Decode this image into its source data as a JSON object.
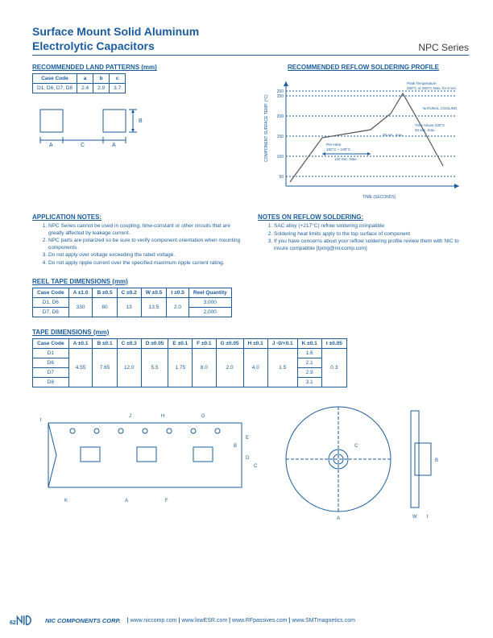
{
  "header": {
    "title_line1": "Surface Mount Solid Aluminum",
    "title_line2": "Electrolytic Capacitors",
    "series": "NPC Series"
  },
  "land_patterns": {
    "heading": "RECOMMENDED LAND PATTERNS (mm)",
    "columns": [
      "Case Code",
      "a",
      "b",
      "c"
    ],
    "rows": [
      [
        "D1, D6, D7, D8",
        "2.4",
        "2.9",
        "3.7"
      ]
    ]
  },
  "reflow_profile": {
    "heading": "RECOMMENDED REFLOW SOLDERING PROFILE",
    "ylabel": "COMPONENT SURFACE TEMP. (°C)",
    "xlabel": "TIME (SECONDS)",
    "yticks": [
      "50",
      "100",
      "150",
      "200",
      "250",
      "260"
    ],
    "annotations": {
      "peak": "Peak Temperature\n250°C or 260°C Max. for 5 sec.",
      "natural": "NATURAL COOLING",
      "above230": "Time Above 230°C\n40 sec. max.",
      "preheat": "Pre-Heat\n150°C ~ 180°C",
      "preheat_time": "120 Sec. Max.",
      "slope": "30 sec. max."
    },
    "line_color": "#555555",
    "axis_color": "#1a5c9e"
  },
  "app_notes": {
    "heading": "APPLICATION NOTES:",
    "items": [
      "NPC Series cannot be used in coupling, time-constant or other circuits that are greatly affected by leakage current.",
      "NPC parts are polarized so be sure to verify component orientation when mounting components.",
      "Do not apply over voltage exceeding the rated voltage.",
      "Do not apply ripple current over the specified maximum ripple current rating."
    ]
  },
  "reflow_notes": {
    "heading": "NOTES ON REFLOW SOLDERING:",
    "items": [
      "SAC alloy (+217°C) reflow soldering compatible",
      "Soldering heat limits apply to the top surface of component",
      "If you have concerns about your reflow soldering profile review them with NIC to insure compatible [tpmg@niccomp.com]"
    ]
  },
  "reel_tape": {
    "heading": "REEL TAPE DIMENSIONS (mm)",
    "columns": [
      "Case Code",
      "A ±1.0",
      "B ±0.5",
      "C ±0.2",
      "W ±0.5",
      "t ±0.5",
      "Reel Quantity"
    ],
    "rows": [
      [
        "D1, D6",
        "330",
        "80",
        "13",
        "13.5",
        "2.0",
        "3,000"
      ],
      [
        "D7, D8",
        "330",
        "80",
        "13",
        "13.5",
        "2.0",
        "2,000"
      ]
    ]
  },
  "tape_dims": {
    "heading": "TAPE DIMENSIONS (mm)",
    "columns": [
      "Case Code",
      "A ±0.1",
      "B ±0.1",
      "C ±0.3",
      "D ±0.05",
      "E ±0.1",
      "F ±0.1",
      "G ±0.05",
      "H ±0.1",
      "J -0/+0.1",
      "K ±0.1",
      "t ±0.05"
    ],
    "case_codes": [
      "D1",
      "D6",
      "D7",
      "D8"
    ],
    "shared": [
      "4.55",
      "7.65",
      "12.0",
      "5.5",
      "1.75",
      "8.0",
      "2.0",
      "4.0",
      "1.5"
    ],
    "k_values": [
      "1.6",
      "2.1",
      "2.9",
      "3.1"
    ],
    "t_value": "0.3"
  },
  "footer": {
    "page": "62",
    "corp": "NIC COMPONENTS CORP.",
    "links": [
      "www.niccomp.com",
      "www.lowESR.com",
      "www.RFpassives.com",
      "www.SMTmagnetics.com"
    ]
  },
  "colors": {
    "blue": "#1a5c9e",
    "text": "#3a3a3a"
  }
}
